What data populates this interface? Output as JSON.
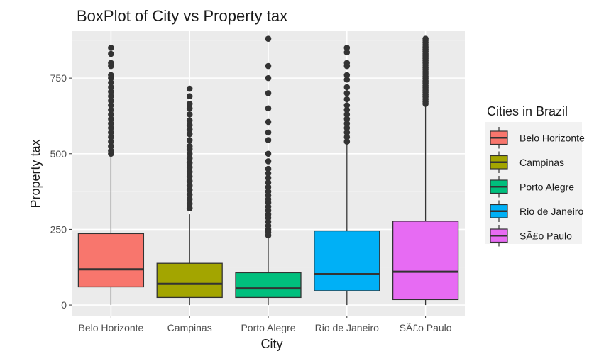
{
  "chart_data": {
    "type": "box",
    "title": "BoxPlot of City vs Property tax",
    "xlabel": "City",
    "ylabel": "Property tax",
    "ylim": [
      -35,
      905
    ],
    "yticks": [
      0,
      250,
      500,
      750
    ],
    "categories": [
      "Belo Horizonte",
      "Campinas",
      "Porto Alegre",
      "Rio de Janeiro",
      "SÃ£o Paulo"
    ],
    "legend": {
      "title": "Cities in Brazil",
      "position": "right",
      "labels": [
        "Belo Horizonte",
        "Campinas",
        "Porto Alegre",
        "Rio de Janeiro",
        "SÃ£o Paulo"
      ]
    },
    "colors": [
      "#F8766D",
      "#A3A500",
      "#00BF7D",
      "#00B0F6",
      "#E76BF3"
    ],
    "grid": true,
    "boxes": [
      {
        "category": "Belo Horizonte",
        "lower_whisker": 0,
        "q1": 60,
        "median": 118,
        "q3": 236,
        "upper_whisker": 495,
        "outliers": [
          500,
          510,
          525,
          540,
          555,
          570,
          585,
          600,
          615,
          630,
          645,
          660,
          675,
          690,
          705,
          720,
          735,
          750,
          760,
          790,
          800,
          830,
          850
        ]
      },
      {
        "category": "Campinas",
        "lower_whisker": 0,
        "q1": 25,
        "median": 70,
        "q3": 138,
        "upper_whisker": 300,
        "outliers": [
          320,
          335,
          350,
          365,
          380,
          395,
          410,
          425,
          440,
          455,
          470,
          485,
          500,
          515,
          525,
          545,
          565,
          580,
          595,
          610,
          630,
          650,
          665,
          690,
          715
        ]
      },
      {
        "category": "Porto Alegre",
        "lower_whisker": 0,
        "q1": 25,
        "median": 55,
        "q3": 107,
        "upper_whisker": 225,
        "outliers": [
          230,
          240,
          250,
          262,
          275,
          288,
          300,
          312,
          325,
          338,
          350,
          362,
          375,
          390,
          405,
          420,
          435,
          450,
          475,
          500,
          545,
          570,
          605,
          650,
          700,
          750,
          790,
          880
        ]
      },
      {
        "category": "Rio de Janeiro",
        "lower_whisker": 0,
        "q1": 47,
        "median": 102,
        "q3": 245,
        "upper_whisker": 535,
        "outliers": [
          540,
          555,
          570,
          585,
          600,
          615,
          630,
          645,
          660,
          680,
          700,
          720,
          745,
          760,
          790,
          800,
          835,
          850
        ]
      },
      {
        "category": "SÃ£o Paulo",
        "lower_whisker": 0,
        "q1": 18,
        "median": 110,
        "q3": 277,
        "upper_whisker": 660,
        "outliers": [
          665,
          672,
          680,
          688,
          695,
          703,
          710,
          718,
          725,
          733,
          740,
          748,
          755,
          763,
          770,
          778,
          785,
          793,
          800,
          808,
          815,
          823,
          830,
          838,
          845,
          853,
          860,
          868,
          875,
          880
        ]
      }
    ]
  }
}
